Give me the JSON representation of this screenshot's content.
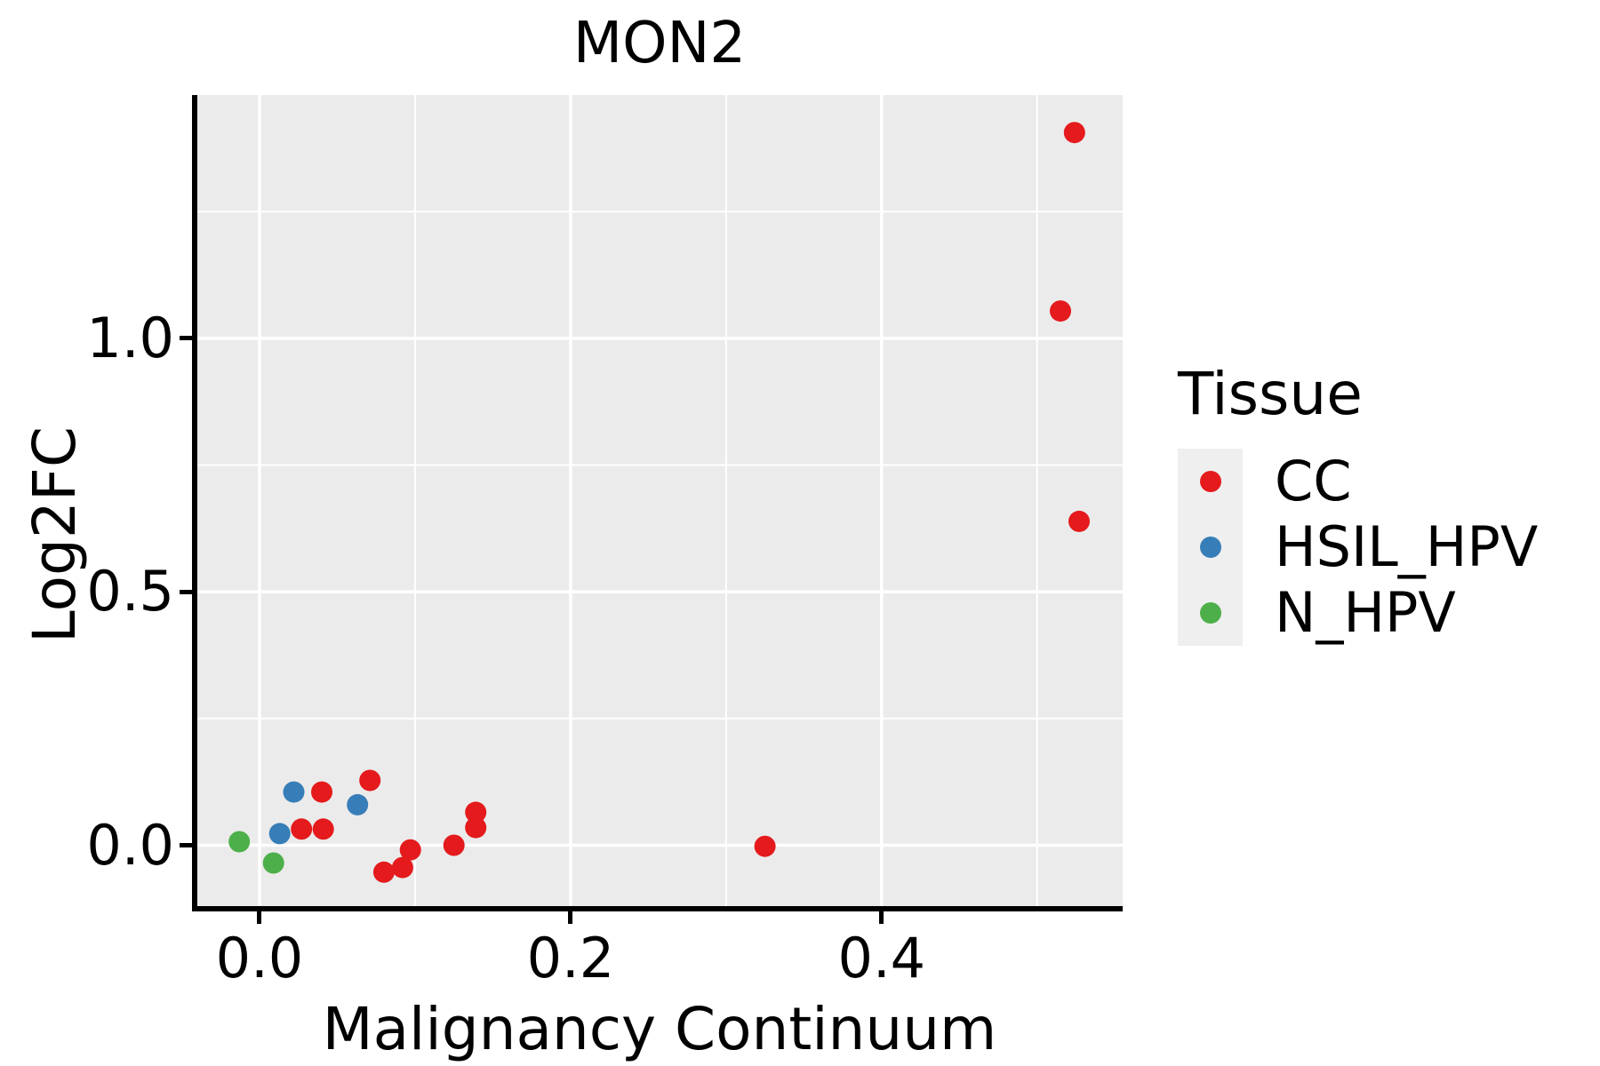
{
  "title": "MON2",
  "chart_data": {
    "type": "scatter",
    "title": "MON2",
    "xlabel": "Malignancy Continuum",
    "ylabel": "Log2FC",
    "xlim": [
      -0.04,
      0.555
    ],
    "ylim": [
      -0.12,
      1.48
    ],
    "panel_bg": "#EBEBEB",
    "grid_color": "#FFFFFF",
    "grid": "major and minor white gridlines on gray panel",
    "xticks": {
      "major": [
        {
          "value": 0.0,
          "label": "0.0"
        },
        {
          "value": 0.2,
          "label": "0.2"
        },
        {
          "value": 0.4,
          "label": "0.4"
        }
      ],
      "minor": [
        0.1,
        0.3,
        0.5
      ]
    },
    "yticks": {
      "major": [
        {
          "value": 0.0,
          "label": "0.0"
        },
        {
          "value": 0.5,
          "label": "0.5"
        },
        {
          "value": 1.0,
          "label": "1.0"
        }
      ],
      "minor": [
        0.25,
        0.75,
        1.25
      ]
    },
    "marker": {
      "shape": "circle",
      "radius_px": 12
    },
    "legend": {
      "title": "Tissue",
      "position": "right",
      "entries": [
        {
          "label": "CC",
          "color": "#E41A1C"
        },
        {
          "label": "HSIL_HPV",
          "color": "#377EB8"
        },
        {
          "label": "N_HPV",
          "color": "#4DAF4A"
        }
      ]
    },
    "series": [
      {
        "name": "CC",
        "color": "#E41A1C",
        "points": [
          [
            0.04,
            0.105
          ],
          [
            0.071,
            0.128
          ],
          [
            0.027,
            0.032
          ],
          [
            0.041,
            0.032
          ],
          [
            0.08,
            -0.053
          ],
          [
            0.092,
            -0.044
          ],
          [
            0.097,
            -0.009
          ],
          [
            0.125,
            0.0
          ],
          [
            0.139,
            0.065
          ],
          [
            0.139,
            0.035
          ],
          [
            0.325,
            -0.002
          ],
          [
            0.524,
            1.406
          ],
          [
            0.515,
            1.054
          ],
          [
            0.527,
            0.639
          ]
        ]
      },
      {
        "name": "HSIL_HPV",
        "color": "#377EB8",
        "points": [
          [
            0.022,
            0.105
          ],
          [
            0.063,
            0.08
          ],
          [
            0.013,
            0.023
          ]
        ]
      },
      {
        "name": "N_HPV",
        "color": "#4DAF4A",
        "points": [
          [
            -0.013,
            0.007
          ],
          [
            0.009,
            -0.035
          ]
        ]
      }
    ]
  }
}
